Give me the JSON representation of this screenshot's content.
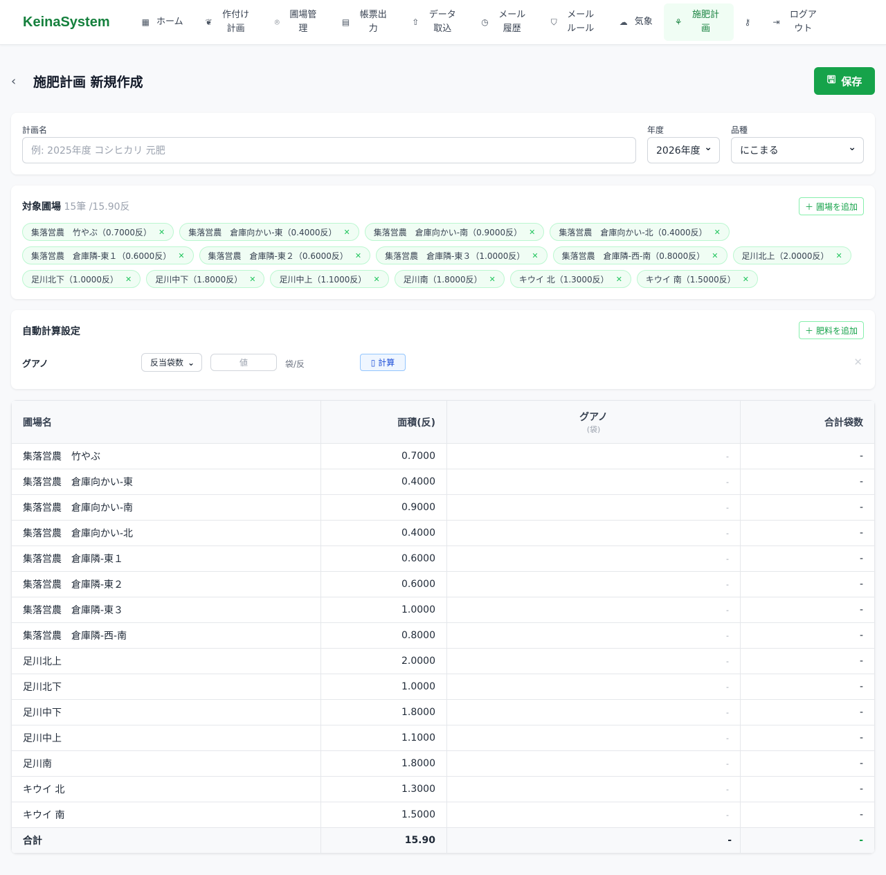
{
  "app": {
    "logo": "KeinaSystem"
  },
  "nav": [
    {
      "label": "ホーム",
      "icon": "grid-icon",
      "glyph": "▦"
    },
    {
      "label": "作付け計画",
      "icon": "wheat-icon",
      "glyph": "❦"
    },
    {
      "label": "圃場管理",
      "icon": "map-pin-icon",
      "glyph": "⌾"
    },
    {
      "label": "帳票出力",
      "icon": "document-icon",
      "glyph": "▤"
    },
    {
      "label": "データ取込",
      "icon": "upload-icon",
      "glyph": "⇧"
    },
    {
      "label": "メール履歴",
      "icon": "history-icon",
      "glyph": "◷"
    },
    {
      "label": "メールルール",
      "icon": "shield-icon",
      "glyph": "⛉"
    },
    {
      "label": "気象",
      "icon": "cloud-icon",
      "glyph": "☁"
    },
    {
      "label": "施肥計画",
      "icon": "sprout-icon",
      "glyph": "⚘",
      "active": true
    },
    {
      "label": "",
      "icon": "key-icon",
      "glyph": "⚷"
    },
    {
      "label": "ログアウト",
      "icon": "logout-icon",
      "glyph": "⇥"
    }
  ],
  "page": {
    "title": "施肥計画 新規作成",
    "save_label": "保存"
  },
  "form": {
    "plan_name_label": "計画名",
    "plan_name_placeholder": "例: 2025年度 コシヒカリ 元肥",
    "year_label": "年度",
    "year_value": "2026年度",
    "variety_label": "品種",
    "variety_value": "にこまる"
  },
  "fields_section": {
    "title": "対象圃場",
    "summary": "15筆 /15.90反",
    "add_label": "圃場を追加",
    "chips": [
      "集落営農　竹やぶ（0.7000反）",
      "集落営農　倉庫向かい-東（0.4000反）",
      "集落営農　倉庫向かい-南（0.9000反）",
      "集落営農　倉庫向かい-北（0.4000反）",
      "集落営農　倉庫隣-東１（0.6000反）",
      "集落営農　倉庫隣-東２（0.6000反）",
      "集落営農　倉庫隣-東３（1.0000反）",
      "集落営農　倉庫隣-西-南（0.8000反）",
      "足川北上（2.0000反）",
      "足川北下（1.0000反）",
      "足川中下（1.8000反）",
      "足川中上（1.1000反）",
      "足川南（1.8000反）",
      "キウイ 北（1.3000反）",
      "キウイ 南（1.5000反）"
    ]
  },
  "auto_calc": {
    "title": "自動計算設定",
    "add_label": "肥料を追加",
    "fertilizer": "グアノ",
    "method": "反当袋数",
    "value_placeholder": "値",
    "unit": "袋/反",
    "calc_label": "計算"
  },
  "table": {
    "headers": [
      "圃場名",
      "面積(反)",
      "グアノ",
      "合計袋数"
    ],
    "sub_header": "(袋)",
    "rows": [
      [
        "集落営農　竹やぶ",
        "0.7000",
        "-",
        "-"
      ],
      [
        "集落営農　倉庫向かい-東",
        "0.4000",
        "-",
        "-"
      ],
      [
        "集落営農　倉庫向かい-南",
        "0.9000",
        "-",
        "-"
      ],
      [
        "集落営農　倉庫向かい-北",
        "0.4000",
        "-",
        "-"
      ],
      [
        "集落営農　倉庫隣-東１",
        "0.6000",
        "-",
        "-"
      ],
      [
        "集落営農　倉庫隣-東２",
        "0.6000",
        "-",
        "-"
      ],
      [
        "集落営農　倉庫隣-東３",
        "1.0000",
        "-",
        "-"
      ],
      [
        "集落営農　倉庫隣-西-南",
        "0.8000",
        "-",
        "-"
      ],
      [
        "足川北上",
        "2.0000",
        "-",
        "-"
      ],
      [
        "足川北下",
        "1.0000",
        "-",
        "-"
      ],
      [
        "足川中下",
        "1.8000",
        "-",
        "-"
      ],
      [
        "足川中上",
        "1.1000",
        "-",
        "-"
      ],
      [
        "足川南",
        "1.8000",
        "-",
        "-"
      ],
      [
        "キウイ 北",
        "1.3000",
        "-",
        "-"
      ],
      [
        "キウイ 南",
        "1.5000",
        "-",
        "-"
      ]
    ],
    "total": [
      "合計",
      "15.90",
      "-",
      "-"
    ]
  }
}
